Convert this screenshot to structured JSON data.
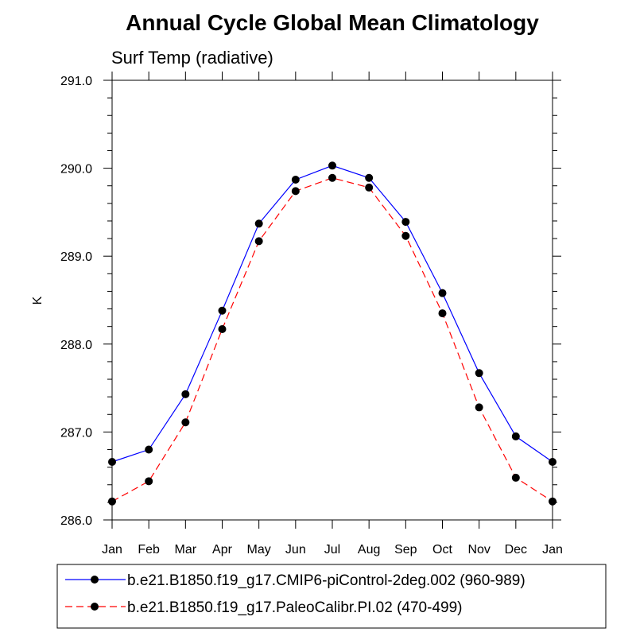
{
  "chart_data": {
    "type": "line",
    "title": "Annual Cycle Global Mean Climatology",
    "subtitle": "Surf Temp (radiative)",
    "xlabel": "",
    "ylabel": "K",
    "categories": [
      "Jan",
      "Feb",
      "Mar",
      "Apr",
      "May",
      "Jun",
      "Jul",
      "Aug",
      "Sep",
      "Oct",
      "Nov",
      "Dec",
      "Jan"
    ],
    "ylim": [
      286.0,
      291.0
    ],
    "yticks": [
      "286.0",
      "287.0",
      "288.0",
      "289.0",
      "290.0",
      "291.0"
    ],
    "grid": false,
    "legend_position": "bottom",
    "series": [
      {
        "name": "b.e21.B1850.f19_g17.CMIP6-piControl-2deg.002 (960-989)",
        "color": "#0000ff",
        "line_style": "solid",
        "marker": "filled-circle",
        "values": [
          286.66,
          286.8,
          287.43,
          288.38,
          289.37,
          289.87,
          290.03,
          289.89,
          289.39,
          288.58,
          287.67,
          286.95,
          286.66
        ]
      },
      {
        "name": "b.e21.B1850.f19_g17.PaleoCalibr.PI.02 (470-499)",
        "color": "#ff0000",
        "line_style": "dashed",
        "marker": "filled-circle",
        "values": [
          286.21,
          286.44,
          287.11,
          288.17,
          289.17,
          289.74,
          289.89,
          289.78,
          289.23,
          288.35,
          287.28,
          286.48,
          286.21
        ]
      }
    ]
  }
}
